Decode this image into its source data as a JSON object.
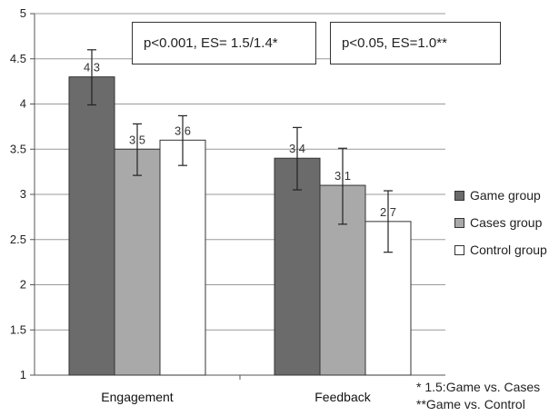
{
  "chart_data": {
    "type": "bar",
    "categories": [
      "Engagement",
      "Feedback"
    ],
    "ylim": [
      1,
      5
    ],
    "yticks": [
      "1",
      "1.5",
      "2",
      "2.5",
      "3",
      "3.5",
      "4",
      "4.5",
      "5"
    ],
    "grid": true,
    "legend_position": "right",
    "series": [
      {
        "name": "Game group",
        "color": "#6b6b6b",
        "values": [
          4.3,
          3.4
        ],
        "labels": [
          "4.3",
          "3.4"
        ],
        "error_low": [
          3.99,
          3.05
        ],
        "error_high": [
          4.6,
          3.74
        ]
      },
      {
        "name": "Cases group",
        "color": "#a9a9a9",
        "values": [
          3.5,
          3.1
        ],
        "labels": [
          "3.5",
          "3.1"
        ],
        "error_low": [
          3.21,
          2.67
        ],
        "error_high": [
          3.78,
          3.51
        ]
      },
      {
        "name": "Control group",
        "color": "#ffffff",
        "values": [
          3.6,
          2.7
        ],
        "labels": [
          "3.6",
          "2.7"
        ],
        "error_low": [
          3.32,
          2.36
        ],
        "error_high": [
          3.87,
          3.04
        ]
      }
    ],
    "annotations": [
      {
        "text": "p<0.001, ES= 1.5/1.4*"
      },
      {
        "text": "p<0.05, ES=1.0**"
      }
    ],
    "footnotes": [
      "*   1.5:Game vs. Cases",
      "**Game vs. Control"
    ]
  }
}
